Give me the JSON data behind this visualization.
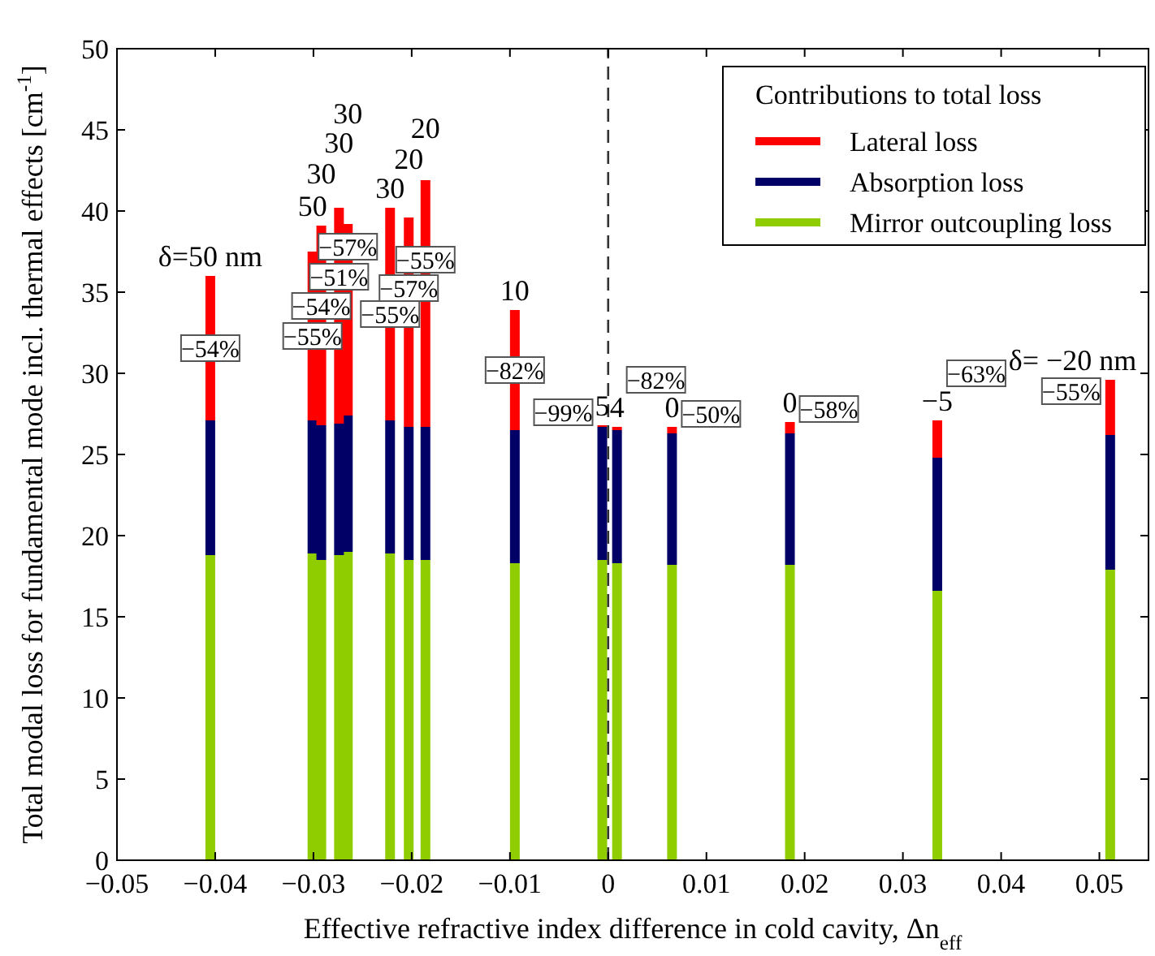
{
  "chart_data": {
    "type": "bar",
    "stacked": true,
    "xlabel": "Effective refractive index difference in cold cavity, Δn$_{eff}$",
    "ylabel": "Total modal loss for fundamental mode incl. thermal effects [cm$^{-1}$]",
    "legend_title": "Contributions to total loss",
    "legend": "top right",
    "x": [
      -0.0405,
      -0.0301,
      -0.0292,
      -0.0274,
      -0.0265,
      -0.0222,
      -0.0203,
      -0.0186,
      -0.0095,
      -0.0006,
      0.0009,
      0.0065,
      0.0185,
      0.0335,
      0.0511
    ],
    "series": [
      {
        "name": "Mirror outcoupling loss",
        "color": "#8fcc00",
        "values": [
          18.8,
          18.9,
          18.5,
          18.8,
          19.0,
          18.9,
          18.5,
          18.5,
          18.3,
          18.5,
          18.3,
          18.2,
          18.2,
          16.6,
          17.9
        ]
      },
      {
        "name": "Absorption loss",
        "color": "#000066",
        "values": [
          8.3,
          8.2,
          8.3,
          8.1,
          8.4,
          8.2,
          8.2,
          8.2,
          8.2,
          8.2,
          8.2,
          8.1,
          8.1,
          8.2,
          8.3
        ]
      },
      {
        "name": "Lateral loss",
        "color": "#ff0000",
        "values": [
          8.9,
          10.4,
          12.3,
          13.3,
          11.8,
          13.1,
          12.9,
          15.2,
          7.4,
          0.1,
          0.2,
          0.4,
          0.7,
          2.3,
          3.4
        ]
      }
    ],
    "xlim": [
      -0.05,
      0.055
    ],
    "xticks": [
      {
        "value": -0.05,
        "label": "−0.05"
      },
      {
        "value": -0.04,
        "label": "−0.04"
      },
      {
        "value": -0.03,
        "label": "−0.03"
      },
      {
        "value": -0.02,
        "label": "−0.02"
      },
      {
        "value": -0.01,
        "label": "−0.01"
      },
      0,
      0.01,
      0.02,
      0.03,
      0.04,
      0.05
    ],
    "ylim": [
      0,
      50
    ],
    "yticks": [
      0,
      5,
      10,
      15,
      20,
      25,
      30,
      35,
      40,
      45,
      50
    ],
    "ref_lines": [
      {
        "axis": "x",
        "value": 0,
        "line_style": "dashed"
      }
    ],
    "annotations": [
      {
        "text": "δ=50 nm",
        "x": -0.0405,
        "y": 36.0
      },
      {
        "text": "50",
        "x": -0.0301,
        "y": 37.5
      },
      {
        "text": "30",
        "x": -0.0292,
        "y": 39.1
      },
      {
        "text": "30",
        "x": -0.0274,
        "y": 40.2
      },
      {
        "text": "30",
        "x": -0.0265,
        "y": 39.2
      },
      {
        "text": "30",
        "x": -0.0222,
        "y": 40.2
      },
      {
        "text": "20",
        "x": -0.0203,
        "y": 39.6
      },
      {
        "text": "20",
        "x": -0.0186,
        "y": 41.9
      },
      {
        "text": "10",
        "x": -0.0095,
        "y": 33.9
      },
      {
        "text": "5",
        "x": -0.0006,
        "y": 26.8
      },
      {
        "text": "4",
        "x": 0.0009,
        "y": 26.7
      },
      {
        "text": "0",
        "x": 0.0065,
        "y": 26.7
      },
      {
        "text": "0",
        "x": 0.0185,
        "y": 27.0
      },
      {
        "text": "−5",
        "x": 0.0335,
        "y": 27.1
      },
      {
        "text": "δ= −20 nm",
        "x": 0.0511,
        "y": 29.6
      },
      "−54%",
      "−55%",
      "−54%",
      "−51%",
      "−57%",
      "−55%",
      "−57%",
      "−55%",
      "−82%",
      "−99%",
      "−82%",
      "−50%",
      "−58%",
      "−63%",
      "−55%"
    ]
  }
}
